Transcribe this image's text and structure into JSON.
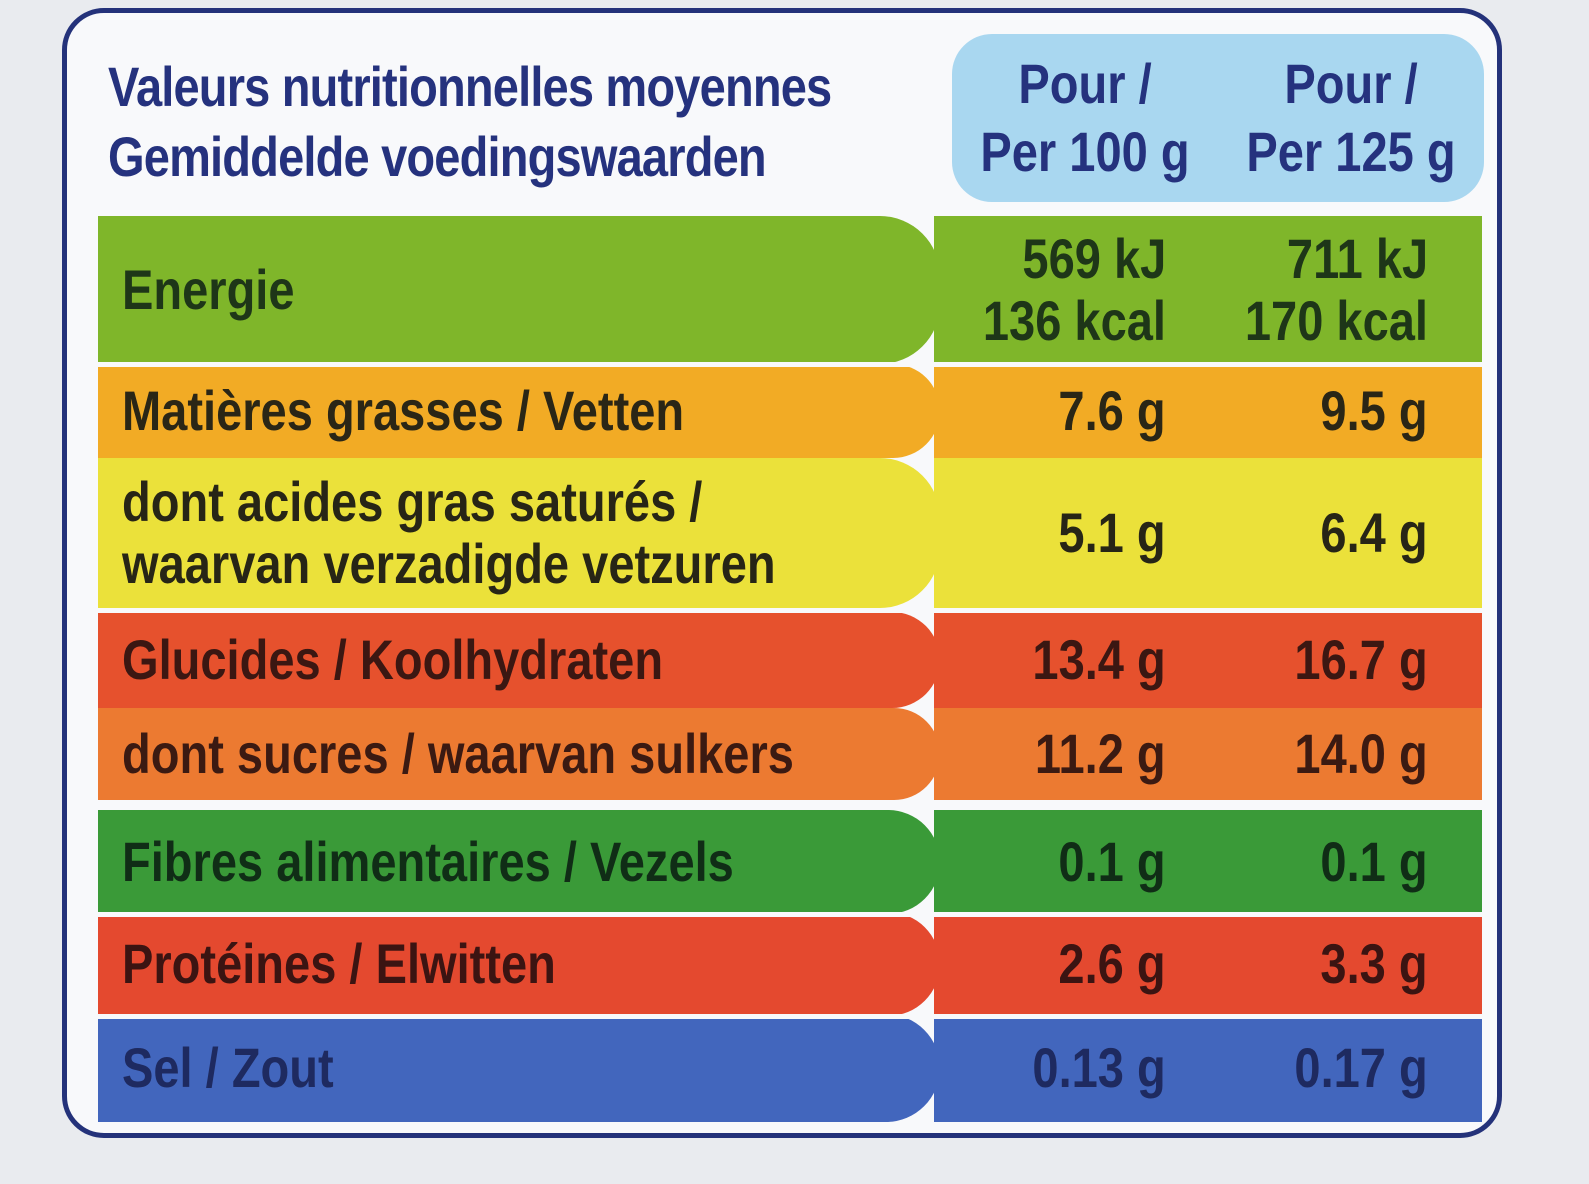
{
  "title": {
    "line1": "Valeurs nutritionnelles moyennes",
    "line2": "Gemiddelde voedingswaarden"
  },
  "columns": [
    {
      "line1": "Pour /",
      "line2": "Per 100 g"
    },
    {
      "line1": "Pour /",
      "line2": "Per 125 g"
    }
  ],
  "rows": [
    {
      "label_lines": [
        "Energie"
      ],
      "per100": [
        "569 kJ",
        "136 kcal"
      ],
      "per125": [
        "711 kJ",
        "170 kcal"
      ],
      "color": "#7fb62a"
    },
    {
      "label_lines": [
        "Matières grasses / Vetten"
      ],
      "per100": [
        "7.6 g"
      ],
      "per125": [
        "9.5 g"
      ],
      "color": "#f2ab25"
    },
    {
      "label_lines": [
        "dont acides gras saturés /",
        "waarvan verzadigde vetzuren"
      ],
      "per100": [
        "5.1 g"
      ],
      "per125": [
        "6.4 g"
      ],
      "color": "#ebe13a"
    },
    {
      "label_lines": [
        "Glucides / Koolhydraten"
      ],
      "per100": [
        "13.4 g"
      ],
      "per125": [
        "16.7 g"
      ],
      "color": "#e6512d"
    },
    {
      "label_lines": [
        "dont sucres / waarvan sulkers"
      ],
      "per100": [
        "11.2 g"
      ],
      "per125": [
        "14.0 g"
      ],
      "color": "#ec7a31"
    },
    {
      "label_lines": [
        "Fibres alimentaires / Vezels"
      ],
      "per100": [
        "0.1 g"
      ],
      "per125": [
        "0.1 g"
      ],
      "color": "#3a9a38"
    },
    {
      "label_lines": [
        "Protéines / Elwitten"
      ],
      "per100": [
        "2.6 g"
      ],
      "per125": [
        "3.3 g"
      ],
      "color": "#e4492f"
    },
    {
      "label_lines": [
        "Sel / Zout"
      ],
      "per100": [
        "0.13 g"
      ],
      "per125": [
        "0.17 g"
      ],
      "color": "#4266bd"
    }
  ]
}
